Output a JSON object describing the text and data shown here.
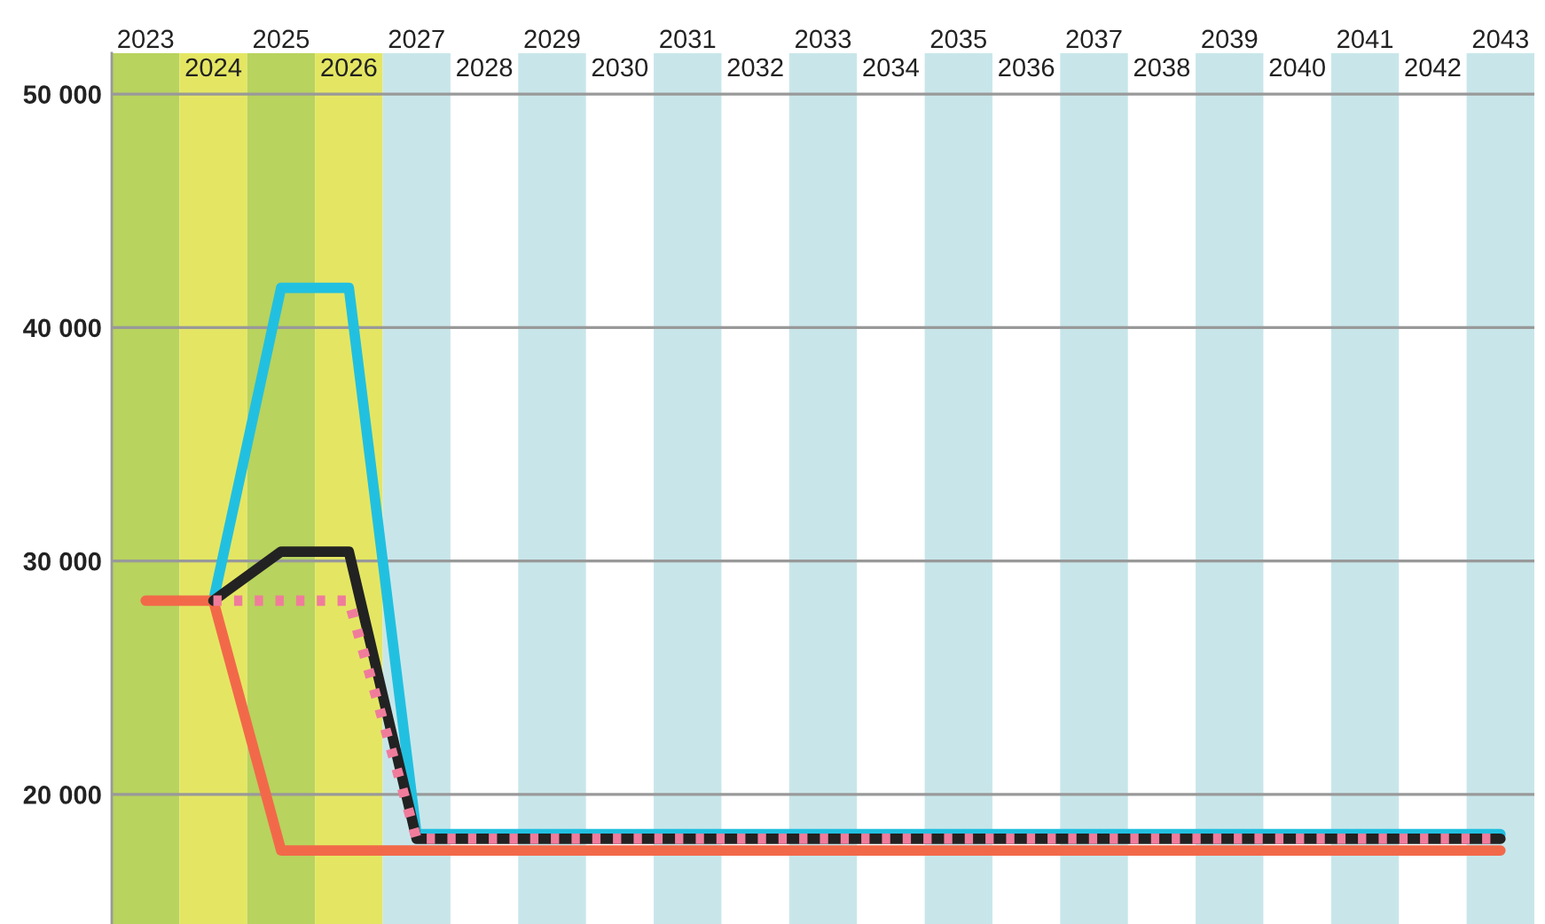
{
  "chart_data": {
    "type": "line",
    "categories": [
      "2023",
      "2024",
      "2025",
      "2026",
      "2027",
      "2028",
      "2029",
      "2030",
      "2031",
      "2032",
      "2033",
      "2034",
      "2035",
      "2036",
      "2037",
      "2038",
      "2039",
      "2040",
      "2041",
      "2042",
      "2043"
    ],
    "series": [
      {
        "color": "#22c0e0",
        "line_style": "solid",
        "values": [
          null,
          28300,
          41700,
          41700,
          18300,
          18300,
          18300,
          18300,
          18300,
          18300,
          18300,
          18300,
          18300,
          18300,
          18300,
          18300,
          18300,
          18300,
          18300,
          18300,
          18300
        ]
      },
      {
        "color": "#f2694a",
        "line_style": "solid",
        "values": [
          28300,
          28300,
          17600,
          17600,
          17600,
          17600,
          17600,
          17600,
          17600,
          17600,
          17600,
          17600,
          17600,
          17600,
          17600,
          17600,
          17600,
          17600,
          17600,
          17600,
          17600
        ]
      },
      {
        "color": "#222222",
        "line_style": "solid",
        "values": [
          null,
          28300,
          30400,
          30400,
          18100,
          18100,
          18100,
          18100,
          18100,
          18100,
          18100,
          18100,
          18100,
          18100,
          18100,
          18100,
          18100,
          18100,
          18100,
          18100,
          18100
        ]
      },
      {
        "color": "#f07c9c",
        "line_style": "dotted",
        "values": [
          null,
          28300,
          28300,
          28300,
          18100,
          18100,
          18100,
          18100,
          18100,
          18100,
          18100,
          18100,
          18100,
          18100,
          18100,
          18100,
          18100,
          18100,
          18100,
          18100,
          18100
        ]
      }
    ],
    "ylim": [
      14450,
      51750
    ],
    "yticks": [
      {
        "value": 20000,
        "label": "20 000"
      },
      {
        "value": 30000,
        "label": "30 000"
      },
      {
        "value": 40000,
        "label": "40 000"
      },
      {
        "value": 50000,
        "label": "50 000"
      }
    ],
    "grid": "y",
    "legend": false,
    "marker": "none",
    "bands": [
      {
        "axis": "x",
        "from": "2023",
        "to": "2023",
        "color": "#b8d35e"
      },
      {
        "axis": "x",
        "from": "2024",
        "to": "2024",
        "color": "#e4e663"
      },
      {
        "axis": "x",
        "from": "2025",
        "to": "2025",
        "color": "#b8d35e"
      },
      {
        "axis": "x",
        "from": "2026",
        "to": "2026",
        "color": "#e4e663"
      },
      {
        "axis": "x",
        "from": "2027",
        "to": "2027",
        "color": "#c8e6ea"
      },
      {
        "axis": "x",
        "from": "2029",
        "to": "2029",
        "color": "#c8e6ea"
      },
      {
        "axis": "x",
        "from": "2031",
        "to": "2031",
        "color": "#c8e6ea"
      },
      {
        "axis": "x",
        "from": "2033",
        "to": "2033",
        "color": "#c8e6ea"
      },
      {
        "axis": "x",
        "from": "2035",
        "to": "2035",
        "color": "#c8e6ea"
      },
      {
        "axis": "x",
        "from": "2037",
        "to": "2037",
        "color": "#c8e6ea"
      },
      {
        "axis": "x",
        "from": "2039",
        "to": "2039",
        "color": "#c8e6ea"
      },
      {
        "axis": "x",
        "from": "2041",
        "to": "2041",
        "color": "#c8e6ea"
      },
      {
        "axis": "x",
        "from": "2043",
        "to": "2043",
        "color": "#c8e6ea"
      }
    ]
  }
}
